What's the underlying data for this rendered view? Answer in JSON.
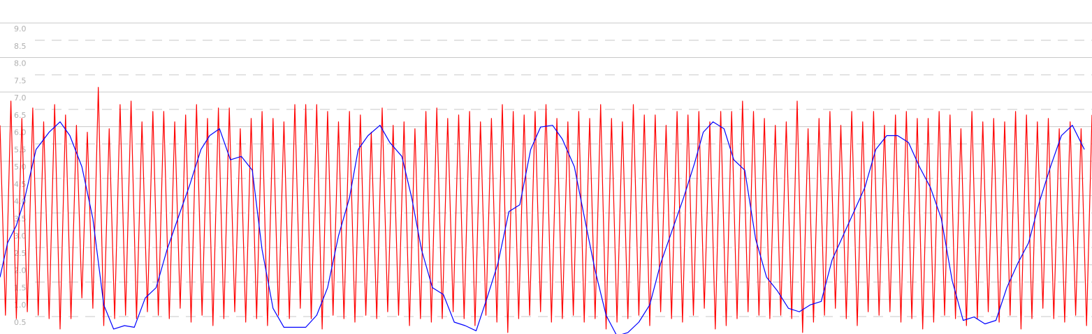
{
  "chart_data": {
    "type": "line",
    "title": "",
    "xlabel": "",
    "ylabel": "",
    "ylim": [
      0.2,
      9.4
    ],
    "xlim": [
      0,
      1
    ],
    "grid": true,
    "yticks": [
      {
        "value": 9.0,
        "label": "9.0"
      },
      {
        "value": 8.5,
        "label": "8.5"
      },
      {
        "value": 8.0,
        "label": "8.0"
      },
      {
        "value": 7.5,
        "label": "7.5"
      },
      {
        "value": 7.0,
        "label": "7.0"
      },
      {
        "value": 6.5,
        "label": "6.5"
      },
      {
        "value": 6.0,
        "label": "6.0"
      },
      {
        "value": 5.5,
        "label": "5.5"
      },
      {
        "value": 5.0,
        "label": "5.0"
      },
      {
        "value": 4.5,
        "label": "4.5"
      },
      {
        "value": 4.0,
        "label": "4.0"
      },
      {
        "value": 3.5,
        "label": "3.5"
      },
      {
        "value": 3.0,
        "label": "3.0"
      },
      {
        "value": 2.5,
        "label": "2.5"
      },
      {
        "value": 2.0,
        "label": "2.0"
      },
      {
        "value": 1.5,
        "label": "1.5"
      },
      {
        "value": 1.0,
        "label": "1.0"
      },
      {
        "value": 0.5,
        "label": "0.5"
      }
    ],
    "series": [
      {
        "color": "#ff0000",
        "x_start": 0.0,
        "x_end": 1.0,
        "values": [
          6.2,
          0.7,
          6.9,
          0.6,
          6.4,
          0.8,
          6.7,
          0.7,
          6.3,
          0.6,
          6.8,
          0.3,
          6.5,
          0.6,
          6.2,
          1.2,
          6.0,
          0.9,
          7.3,
          0.4,
          6.1,
          0.6,
          6.8,
          0.7,
          6.9,
          0.6,
          6.3,
          0.8,
          6.6,
          0.7,
          6.6,
          0.6,
          6.3,
          0.9,
          6.5,
          0.5,
          6.8,
          0.7,
          6.4,
          0.4,
          6.7,
          0.6,
          6.7,
          0.8,
          6.1,
          0.5,
          6.4,
          0.6,
          6.6,
          0.4,
          6.4,
          0.7,
          6.3,
          0.6,
          6.8,
          0.9,
          6.8,
          0.6,
          6.8,
          0.3,
          6.6,
          0.7,
          6.3,
          0.6,
          6.6,
          0.5,
          6.5,
          0.7,
          6.0,
          0.6,
          6.7,
          0.8,
          6.2,
          0.7,
          6.3,
          0.4,
          6.1,
          0.6,
          6.6,
          0.5,
          6.7,
          0.6,
          6.4,
          0.8,
          6.5,
          0.6,
          6.6,
          0.4,
          6.3,
          0.7,
          6.4,
          0.5,
          6.8,
          0.2,
          6.6,
          0.6,
          6.5,
          0.7,
          6.6,
          0.8,
          6.8,
          0.5,
          6.4,
          0.6,
          6.3,
          0.7,
          6.6,
          0.5,
          6.4,
          0.6,
          6.8,
          0.3,
          6.4,
          0.5,
          6.3,
          0.6,
          6.8,
          0.7,
          6.5,
          0.4,
          6.5,
          0.8,
          6.2,
          0.6,
          6.6,
          0.5,
          6.5,
          0.7,
          6.6,
          0.9,
          6.3,
          0.3,
          6.6,
          0.4,
          6.6,
          0.6,
          6.9,
          0.8,
          6.6,
          0.7,
          6.4,
          0.6,
          6.2,
          0.7,
          6.3,
          0.6,
          6.9,
          0.2,
          6.1,
          0.5,
          6.4,
          0.7,
          6.6,
          0.9,
          6.2,
          0.6,
          6.6,
          0.4,
          6.3,
          0.8,
          6.6,
          0.7,
          6.2,
          0.8,
          6.5,
          0.5,
          6.6,
          0.6,
          6.4,
          0.3,
          6.4,
          0.5,
          6.6,
          0.7,
          6.5,
          0.6,
          6.1,
          0.4,
          6.6,
          0.6,
          6.3,
          0.8,
          6.4,
          0.5,
          6.3,
          0.7,
          6.6,
          0.3,
          6.5,
          0.6,
          6.3,
          0.9,
          6.4,
          0.6,
          6.1,
          0.5,
          6.3,
          0.7,
          6.1,
          0.4,
          6.5
        ]
      },
      {
        "color": "#0000ff",
        "points": [
          [
            0.0,
            1.8
          ],
          [
            0.007,
            2.8
          ],
          [
            0.015,
            3.3
          ],
          [
            0.022,
            4.0
          ],
          [
            0.033,
            5.5
          ],
          [
            0.045,
            6.0
          ],
          [
            0.055,
            6.3
          ],
          [
            0.064,
            5.9
          ],
          [
            0.075,
            5.0
          ],
          [
            0.085,
            3.5
          ],
          [
            0.095,
            1.0
          ],
          [
            0.104,
            0.3
          ],
          [
            0.114,
            0.4
          ],
          [
            0.123,
            0.35
          ],
          [
            0.133,
            1.2
          ],
          [
            0.143,
            1.5
          ],
          [
            0.153,
            2.6
          ],
          [
            0.164,
            3.6
          ],
          [
            0.174,
            4.5
          ],
          [
            0.184,
            5.5
          ],
          [
            0.192,
            5.9
          ],
          [
            0.201,
            6.1
          ],
          [
            0.211,
            5.2
          ],
          [
            0.221,
            5.3
          ],
          [
            0.231,
            4.9
          ],
          [
            0.24,
            2.6
          ],
          [
            0.25,
            0.9
          ],
          [
            0.26,
            0.35
          ],
          [
            0.27,
            0.35
          ],
          [
            0.28,
            0.35
          ],
          [
            0.29,
            0.7
          ],
          [
            0.3,
            1.5
          ],
          [
            0.31,
            3.0
          ],
          [
            0.32,
            4.1
          ],
          [
            0.328,
            5.5
          ],
          [
            0.337,
            5.9
          ],
          [
            0.348,
            6.2
          ],
          [
            0.357,
            5.7
          ],
          [
            0.368,
            5.3
          ],
          [
            0.377,
            4.1
          ],
          [
            0.386,
            2.6
          ],
          [
            0.396,
            1.5
          ],
          [
            0.406,
            1.3
          ],
          [
            0.416,
            0.5
          ],
          [
            0.426,
            0.4
          ],
          [
            0.436,
            0.25
          ],
          [
            0.446,
            1.2
          ],
          [
            0.456,
            2.2
          ],
          [
            0.466,
            3.7
          ],
          [
            0.476,
            3.9
          ],
          [
            0.486,
            5.5
          ],
          [
            0.495,
            6.15
          ],
          [
            0.506,
            6.2
          ],
          [
            0.515,
            5.8
          ],
          [
            0.526,
            5.0
          ],
          [
            0.536,
            3.4
          ],
          [
            0.545,
            2.0
          ],
          [
            0.555,
            0.7
          ],
          [
            0.565,
            0.1
          ],
          [
            0.575,
            0.2
          ],
          [
            0.585,
            0.5
          ],
          [
            0.595,
            1.0
          ],
          [
            0.605,
            2.2
          ],
          [
            0.616,
            3.2
          ],
          [
            0.626,
            4.1
          ],
          [
            0.636,
            5.1
          ],
          [
            0.644,
            6.0
          ],
          [
            0.653,
            6.3
          ],
          [
            0.663,
            6.1
          ],
          [
            0.672,
            5.2
          ],
          [
            0.682,
            4.9
          ],
          [
            0.692,
            2.9
          ],
          [
            0.702,
            1.8
          ],
          [
            0.712,
            1.4
          ],
          [
            0.722,
            0.9
          ],
          [
            0.732,
            0.8
          ],
          [
            0.742,
            1.0
          ],
          [
            0.752,
            1.1
          ],
          [
            0.762,
            2.3
          ],
          [
            0.772,
            3.0
          ],
          [
            0.782,
            3.7
          ],
          [
            0.792,
            4.4
          ],
          [
            0.802,
            5.5
          ],
          [
            0.812,
            5.9
          ],
          [
            0.822,
            5.9
          ],
          [
            0.832,
            5.7
          ],
          [
            0.842,
            5.0
          ],
          [
            0.852,
            4.4
          ],
          [
            0.862,
            3.5
          ],
          [
            0.872,
            1.7
          ],
          [
            0.882,
            0.55
          ],
          [
            0.892,
            0.65
          ],
          [
            0.902,
            0.45
          ],
          [
            0.912,
            0.55
          ],
          [
            0.922,
            1.5
          ],
          [
            0.932,
            2.2
          ],
          [
            0.942,
            2.8
          ],
          [
            0.952,
            4.0
          ],
          [
            0.962,
            5.0
          ],
          [
            0.972,
            5.9
          ],
          [
            0.982,
            6.2
          ],
          [
            0.993,
            5.5
          ]
        ]
      }
    ]
  }
}
